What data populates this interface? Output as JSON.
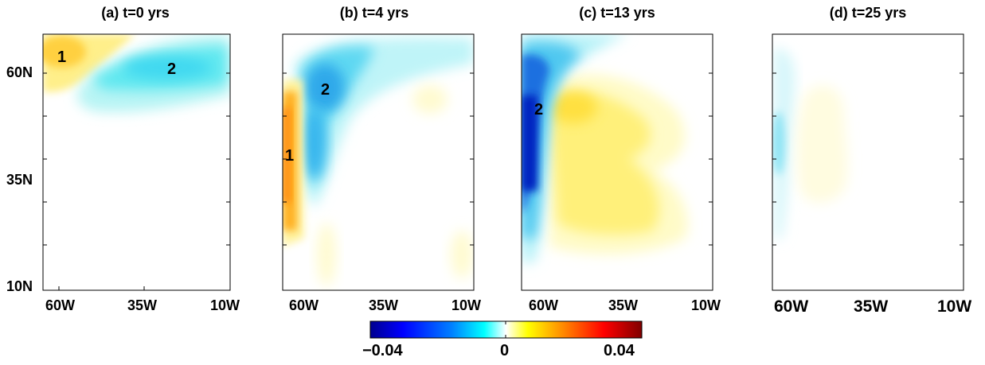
{
  "panels": [
    {
      "title": "(a) t=0 yrs",
      "x_ticks": [
        "60W",
        "35W",
        "10W"
      ],
      "y_ticks": [
        "60N",
        "35N",
        "10N"
      ],
      "markers": [
        "1",
        "2"
      ]
    },
    {
      "title": "(b) t=4 yrs",
      "x_ticks": [
        "60W",
        "35W",
        "10W"
      ],
      "markers": [
        "2",
        "1"
      ]
    },
    {
      "title": "(c) t=13 yrs",
      "x_ticks": [
        "60W",
        "35W",
        "10W"
      ],
      "markers": [
        "2"
      ]
    },
    {
      "title": "(d) t=25 yrs",
      "x_ticks": [
        "60W",
        "35W",
        "10W"
      ],
      "markers": []
    }
  ],
  "colorbar": {
    "min_label": "−0.04",
    "mid_label": "0",
    "max_label": "0.04",
    "range": [
      -0.04,
      0.04
    ],
    "colors": [
      "#00008f",
      "#0000ff",
      "#0080ff",
      "#00ffff",
      "#ffffff",
      "#ffff00",
      "#ff8000",
      "#ff0000",
      "#800000"
    ]
  },
  "chart_data": [
    {
      "type": "heatmap",
      "title": "(a) t=0 yrs",
      "xlabel": "",
      "ylabel": "",
      "x_ticks": [
        "60W",
        "35W",
        "10W"
      ],
      "y_ticks": [
        "60N",
        "35N",
        "10N"
      ],
      "features": [
        {
          "label": "1",
          "lon": -62,
          "lat": 62,
          "value": 0.012
        },
        {
          "label": "2",
          "lon": -30,
          "lat": 61,
          "value": -0.015
        }
      ]
    },
    {
      "type": "heatmap",
      "title": "(b) t=4 yrs",
      "xlabel": "",
      "ylabel": "",
      "x_ticks": [
        "60W",
        "35W",
        "10W"
      ],
      "features": [
        {
          "label": "2",
          "lon": -52,
          "lat": 56,
          "value": -0.016
        },
        {
          "label": "1",
          "lon": -64,
          "lat": 40,
          "value": 0.022
        }
      ]
    },
    {
      "type": "heatmap",
      "title": "(c) t=13 yrs",
      "xlabel": "",
      "ylabel": "",
      "x_ticks": [
        "60W",
        "35W",
        "10W"
      ],
      "features": [
        {
          "label": "2",
          "lon": -62,
          "lat": 52,
          "value": -0.035
        },
        {
          "value": 0.01,
          "lon": -45,
          "lat": 48
        }
      ]
    },
    {
      "type": "heatmap",
      "title": "(d) t=25 yrs",
      "xlabel": "",
      "ylabel": "",
      "x_ticks": [
        "60W",
        "35W",
        "10W"
      ],
      "features": [
        {
          "value": -0.006,
          "lon": -64,
          "lat": 45
        },
        {
          "value": 0.004,
          "lon": -45,
          "lat": 45
        }
      ]
    }
  ]
}
